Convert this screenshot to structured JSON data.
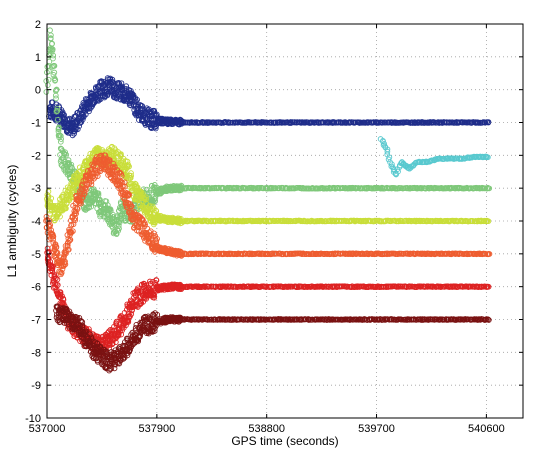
{
  "chart_data": {
    "type": "scatter",
    "title": "",
    "xlabel": "GPS time (seconds)",
    "ylabel": "L1 ambiguity (cycles)",
    "xlim": [
      537000,
      540900
    ],
    "ylim": [
      -10,
      2
    ],
    "x_ticks": [
      537000,
      537900,
      538800,
      539700,
      540600
    ],
    "y_ticks": [
      -10,
      -9,
      -8,
      -7,
      -6,
      -5,
      -4,
      -3,
      -2,
      -1,
      0,
      1,
      2
    ],
    "x_tick_labels": [
      "537000",
      "537900",
      "538800",
      "539700",
      "540600"
    ],
    "y_tick_labels": [
      "-10",
      "-9",
      "-8",
      "-7",
      "-6",
      "-5",
      "-4",
      "-3",
      "-2",
      "-1",
      "0",
      "1",
      "2"
    ],
    "grid": true,
    "marker": "open-circle",
    "series": [
      {
        "color": "#1f2d8a",
        "x_start": 537020,
        "x_end": 540620,
        "points": [
          [
            537020,
            -0.6
          ],
          [
            537080,
            -0.7
          ],
          [
            537140,
            -0.9
          ],
          [
            537200,
            -1.2
          ],
          [
            537260,
            -0.9
          ],
          [
            537320,
            -0.5
          ],
          [
            537380,
            -0.2
          ],
          [
            537440,
            0.0
          ],
          [
            537500,
            0.1
          ],
          [
            537560,
            0.0
          ],
          [
            537620,
            -0.1
          ],
          [
            537680,
            -0.2
          ],
          [
            537740,
            -0.6
          ],
          [
            537800,
            -0.8
          ],
          [
            537860,
            -0.9
          ],
          [
            537920,
            -0.95
          ],
          [
            538000,
            -0.98
          ],
          [
            538200,
            -1.0
          ],
          [
            540620,
            -1.0
          ]
        ]
      },
      {
        "color": "#59c9cf",
        "x_start": 539740,
        "x_end": 540620,
        "points": [
          [
            539740,
            -1.5
          ],
          [
            539780,
            -1.8
          ],
          [
            539820,
            -2.3
          ],
          [
            539860,
            -2.6
          ],
          [
            539900,
            -2.2
          ],
          [
            539960,
            -2.4
          ],
          [
            540040,
            -2.2
          ],
          [
            540120,
            -2.2
          ],
          [
            540200,
            -2.1
          ],
          [
            540300,
            -2.1
          ],
          [
            540400,
            -2.1
          ],
          [
            540500,
            -2.05
          ],
          [
            540620,
            -2.05
          ]
        ]
      },
      {
        "color": "#7fc87a",
        "x_start": 537000,
        "x_end": 540620,
        "points": [
          [
            537000,
            0.2
          ],
          [
            537030,
            1.6
          ],
          [
            537060,
            0.5
          ],
          [
            537090,
            -1.0
          ],
          [
            537120,
            -2.0
          ],
          [
            537160,
            -2.3
          ],
          [
            537200,
            -2.5
          ],
          [
            537260,
            -3.0
          ],
          [
            537320,
            -3.5
          ],
          [
            537380,
            -3.2
          ],
          [
            537440,
            -3.6
          ],
          [
            537500,
            -3.7
          ],
          [
            537560,
            -4.2
          ],
          [
            537620,
            -3.6
          ],
          [
            537680,
            -3.9
          ],
          [
            537740,
            -3.4
          ],
          [
            537800,
            -3.3
          ],
          [
            537860,
            -3.2
          ],
          [
            537920,
            -3.1
          ],
          [
            538000,
            -3.0
          ],
          [
            538200,
            -3.0
          ],
          [
            540620,
            -3.0
          ]
        ]
      },
      {
        "color": "#c9de3a",
        "x_start": 537000,
        "x_end": 540620,
        "points": [
          [
            537000,
            -3.3
          ],
          [
            537060,
            -3.8
          ],
          [
            537120,
            -3.5
          ],
          [
            537180,
            -3.2
          ],
          [
            537240,
            -2.8
          ],
          [
            537300,
            -2.5
          ],
          [
            537360,
            -2.2
          ],
          [
            537420,
            -2.0
          ],
          [
            537480,
            -2.1
          ],
          [
            537540,
            -2.0
          ],
          [
            537600,
            -2.2
          ],
          [
            537660,
            -2.5
          ],
          [
            537720,
            -3.1
          ],
          [
            537780,
            -3.4
          ],
          [
            537840,
            -3.7
          ],
          [
            537900,
            -3.9
          ],
          [
            537960,
            -3.95
          ],
          [
            538100,
            -4.0
          ],
          [
            540620,
            -4.0
          ]
        ]
      },
      {
        "color": "#ee5d30",
        "x_start": 537000,
        "x_end": 540620,
        "points": [
          [
            537000,
            -4.0
          ],
          [
            537060,
            -4.8
          ],
          [
            537120,
            -5.5
          ],
          [
            537180,
            -4.5
          ],
          [
            537240,
            -3.5
          ],
          [
            537300,
            -3.0
          ],
          [
            537360,
            -2.6
          ],
          [
            537420,
            -2.3
          ],
          [
            537480,
            -2.2
          ],
          [
            537540,
            -2.5
          ],
          [
            537600,
            -2.8
          ],
          [
            537660,
            -3.4
          ],
          [
            537720,
            -4.0
          ],
          [
            537780,
            -4.2
          ],
          [
            537840,
            -4.5
          ],
          [
            537900,
            -4.8
          ],
          [
            537960,
            -4.9
          ],
          [
            538100,
            -5.0
          ],
          [
            540620,
            -5.0
          ]
        ]
      },
      {
        "color": "#dd2222",
        "x_start": 537000,
        "x_end": 540620,
        "points": [
          [
            537000,
            -5.0
          ],
          [
            537060,
            -5.8
          ],
          [
            537120,
            -6.5
          ],
          [
            537180,
            -7.1
          ],
          [
            537240,
            -7.3
          ],
          [
            537300,
            -7.5
          ],
          [
            537360,
            -7.6
          ],
          [
            537420,
            -7.8
          ],
          [
            537480,
            -7.7
          ],
          [
            537540,
            -7.5
          ],
          [
            537600,
            -7.2
          ],
          [
            537660,
            -6.8
          ],
          [
            537720,
            -6.4
          ],
          [
            537780,
            -6.2
          ],
          [
            537840,
            -6.1
          ],
          [
            537900,
            -6.05
          ],
          [
            538000,
            -6.0
          ],
          [
            540620,
            -6.0
          ]
        ]
      },
      {
        "color": "#7a1212",
        "x_start": 537080,
        "x_end": 540620,
        "points": [
          [
            537080,
            -6.8
          ],
          [
            537140,
            -6.9
          ],
          [
            537200,
            -7.0
          ],
          [
            537260,
            -7.2
          ],
          [
            537320,
            -7.6
          ],
          [
            537380,
            -7.9
          ],
          [
            537440,
            -8.1
          ],
          [
            537500,
            -8.3
          ],
          [
            537560,
            -8.2
          ],
          [
            537620,
            -8.0
          ],
          [
            537680,
            -7.7
          ],
          [
            537740,
            -7.4
          ],
          [
            537800,
            -7.2
          ],
          [
            537860,
            -7.1
          ],
          [
            537920,
            -7.05
          ],
          [
            538000,
            -7.0
          ],
          [
            540620,
            -7.0
          ]
        ]
      }
    ]
  }
}
